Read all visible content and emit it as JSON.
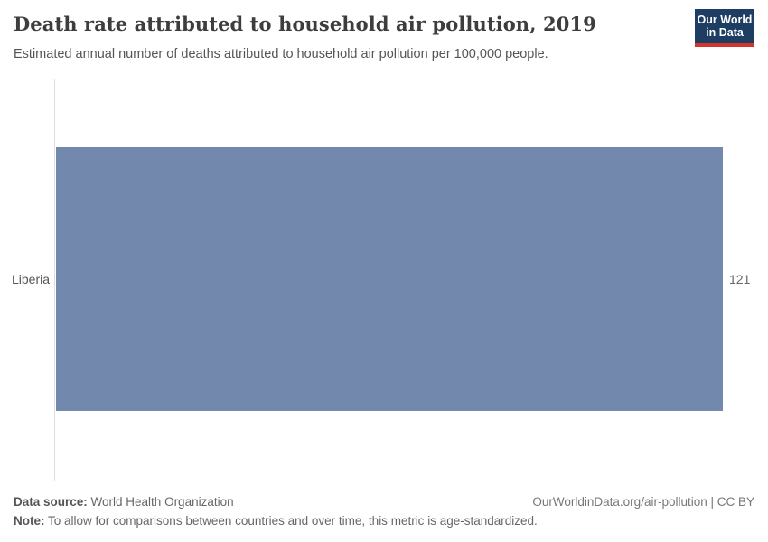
{
  "header": {
    "title": "Death rate attributed to household air pollution, 2019",
    "subtitle": "Estimated annual number of deaths attributed to household air pollution per 100,000 people.",
    "logo": {
      "line1": "Our World",
      "line2": "in Data"
    }
  },
  "chart_data": {
    "type": "bar",
    "orientation": "horizontal",
    "categories": [
      "Liberia"
    ],
    "values": [
      121
    ],
    "value_labels": [
      "121"
    ],
    "title": "Death rate attributed to household air pollution, 2019",
    "xlabel": "",
    "ylabel": "",
    "xlim": [
      0,
      121
    ],
    "grid": false,
    "legend": "none",
    "bar_color": "#7289ad"
  },
  "colors": {
    "bar": "#7289ad",
    "axis_line": "#dddddd",
    "logo_bg": "#1d3d63",
    "logo_accent": "#d0342c"
  },
  "footer": {
    "source_label": "Data source:",
    "source_value": " World Health Organization",
    "note_label": "Note:",
    "note_value": " To allow for comparisons between countries and over time, this metric is age-standardized.",
    "license": "OurWorldinData.org/air-pollution | CC BY"
  }
}
